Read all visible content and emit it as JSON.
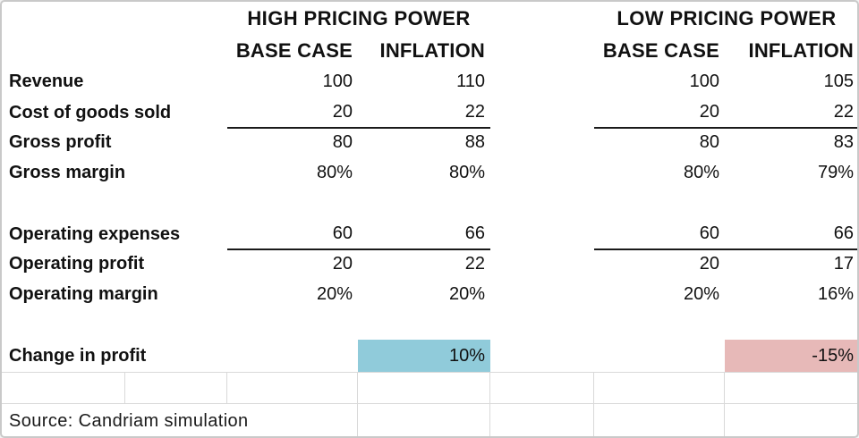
{
  "header": {
    "high_group_title": "HIGH PRICING POWER",
    "low_group_title": "LOW PRICING POWER",
    "high_cols": [
      "BASE CASE",
      "INFLATION"
    ],
    "low_cols": [
      "BASE CASE",
      "INFLATION"
    ]
  },
  "rows": [
    {
      "label": "Revenue",
      "values": [
        "100",
        "110",
        "100",
        "105"
      ]
    },
    {
      "label": "Cost of goods sold",
      "values": [
        "20",
        "22",
        "20",
        "22"
      ]
    },
    {
      "label": "Gross profit",
      "values": [
        "80",
        "88",
        "80",
        "83"
      ]
    },
    {
      "label": "Gross margin",
      "values": [
        "80%",
        "80%",
        "80%",
        "79%"
      ]
    },
    {
      "label": "Operating expenses",
      "values": [
        "60",
        "66",
        "60",
        "66"
      ]
    },
    {
      "label": "Operating profit",
      "values": [
        "20",
        "22",
        "20",
        "17"
      ]
    },
    {
      "label": "Operating margin",
      "values": [
        "20%",
        "20%",
        "20%",
        "16%"
      ]
    }
  ],
  "change_row": {
    "label": "Change in profit",
    "high_inflation_value": "10%",
    "low_inflation_value": "-15%"
  },
  "footer": {
    "source": "Source: Candriam simulation"
  },
  "colors": {
    "positive_highlight": "#90CBDA",
    "negative_highlight": "#E7B9B8",
    "grid_line": "#D9D9D9",
    "text": "#111111"
  },
  "chart_data": {
    "type": "table",
    "title": "",
    "column_groups": [
      "HIGH PRICING POWER",
      "LOW PRICING POWER"
    ],
    "columns": [
      "HIGH BASE CASE",
      "HIGH INFLATION",
      "LOW BASE CASE",
      "LOW INFLATION"
    ],
    "rows": [
      {
        "label": "Revenue",
        "values": [
          100,
          110,
          100,
          105
        ]
      },
      {
        "label": "Cost of goods sold",
        "values": [
          20,
          22,
          20,
          22
        ]
      },
      {
        "label": "Gross profit",
        "values": [
          80,
          88,
          80,
          83
        ]
      },
      {
        "label": "Gross margin",
        "values": [
          "80%",
          "80%",
          "80%",
          "79%"
        ]
      },
      {
        "label": "Operating expenses",
        "values": [
          60,
          66,
          60,
          66
        ]
      },
      {
        "label": "Operating profit",
        "values": [
          20,
          22,
          20,
          17
        ]
      },
      {
        "label": "Operating margin",
        "values": [
          "20%",
          "20%",
          "20%",
          "16%"
        ]
      },
      {
        "label": "Change in profit",
        "values": [
          null,
          "10%",
          null,
          "-15%"
        ]
      }
    ],
    "highlights": [
      {
        "row": "Change in profit",
        "column": "HIGH INFLATION",
        "value": "10%",
        "color": "#90CBDA"
      },
      {
        "row": "Change in profit",
        "column": "LOW INFLATION",
        "value": "-15%",
        "color": "#E7B9B8"
      }
    ],
    "source": "Source: Candriam simulation"
  }
}
